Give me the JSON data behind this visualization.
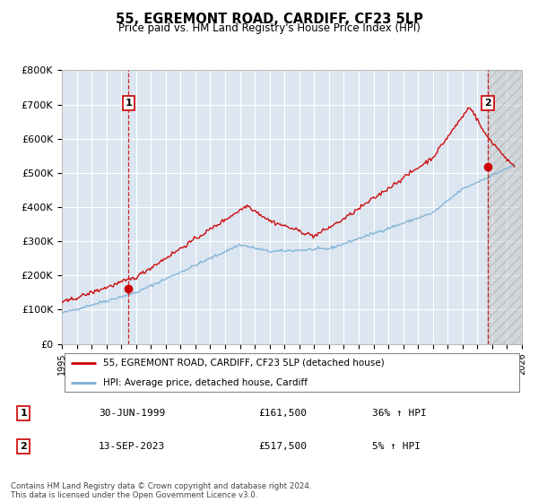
{
  "title": "55, EGREMONT ROAD, CARDIFF, CF23 5LP",
  "subtitle": "Price paid vs. HM Land Registry's House Price Index (HPI)",
  "property_label": "55, EGREMONT ROAD, CARDIFF, CF23 5LP (detached house)",
  "hpi_label": "HPI: Average price, detached house, Cardiff",
  "annotation1": {
    "num": "1",
    "date": "30-JUN-1999",
    "price": "£161,500",
    "hpi_note": "36% ↑ HPI"
  },
  "annotation2": {
    "num": "2",
    "date": "13-SEP-2023",
    "price": "£517,500",
    "hpi_note": "5% ↑ HPI"
  },
  "footer": "Contains HM Land Registry data © Crown copyright and database right 2024.\nThis data is licensed under the Open Government Licence v3.0.",
  "sale1_year": 1999.5,
  "sale1_price": 161500,
  "sale2_year": 2023.71,
  "sale2_price": 517500,
  "ylim": [
    0,
    800000
  ],
  "xlim_start": 1995,
  "xlim_end": 2026,
  "bg_color": "#dce6f1",
  "grid_color": "#ffffff",
  "red_line_color": "#cc0000",
  "blue_line_color": "#7bafd4",
  "dashed_line_color": "#cc0000"
}
